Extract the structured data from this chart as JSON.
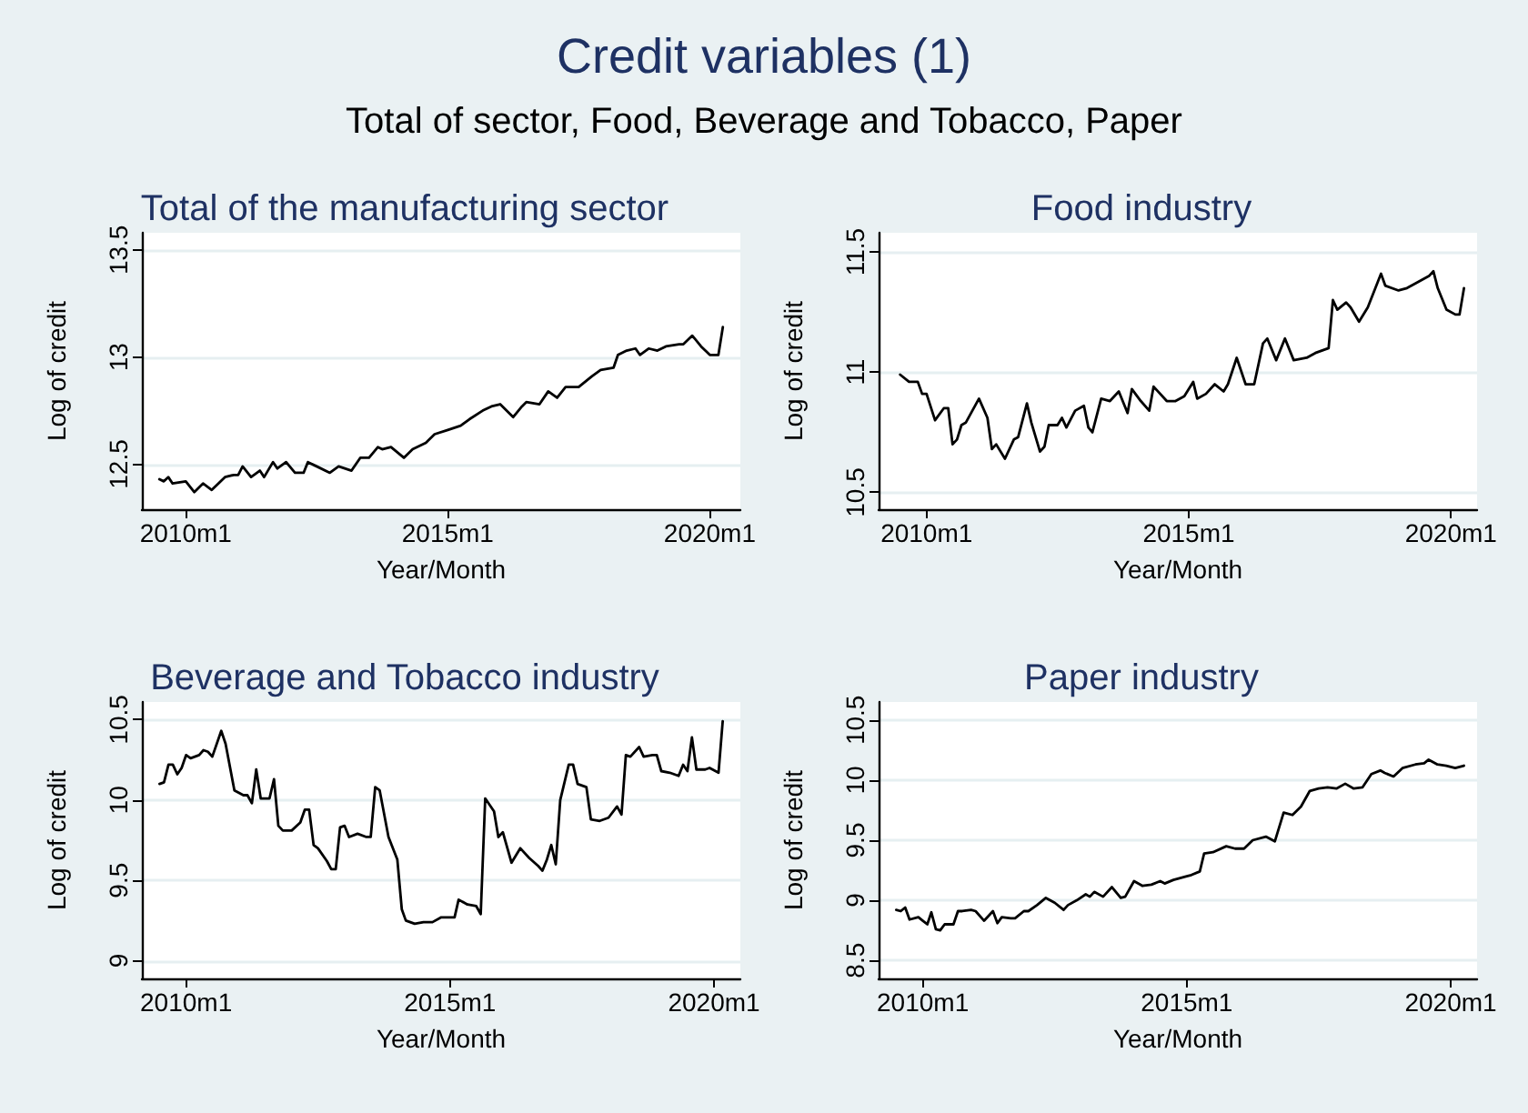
{
  "chart_data": [
    {
      "type": "other",
      "title": "Credit variables (1)",
      "subtitle": "Total of sector, Food, Beverage and Tobacco, Paper"
    },
    {
      "type": "line",
      "title": "Total of the manufacturing sector",
      "xlabel": "Year/Month",
      "ylabel": "Log of credit",
      "marker": "none",
      "line_style": "solid",
      "grid": "y",
      "xlim": [
        "2009-03",
        "2020-08"
      ],
      "xticks": [
        {
          "value": "2010-01",
          "label": "2010m1"
        },
        {
          "value": "2015-01",
          "label": "2015m1"
        },
        {
          "value": "2020-01",
          "label": "2020m1"
        }
      ],
      "ylim": [
        12.29,
        13.58
      ],
      "yticks": [
        12.5,
        13,
        13.5
      ],
      "x": [
        "2009-07",
        "2009-08",
        "2009-09",
        "2009-10",
        "2010-01",
        "2010-03",
        "2010-05",
        "2010-07",
        "2010-10",
        "2010-12",
        "2011-01",
        "2011-02",
        "2011-04",
        "2011-06",
        "2011-07",
        "2011-09",
        "2011-10",
        "2011-12",
        "2012-02",
        "2012-04",
        "2012-05",
        "2012-07",
        "2012-10",
        "2012-12",
        "2013-03",
        "2013-05",
        "2013-07",
        "2013-09",
        "2013-10",
        "2013-12",
        "2014-03",
        "2014-05",
        "2014-08",
        "2014-10",
        "2015-01",
        "2015-04",
        "2015-06",
        "2015-09",
        "2015-11",
        "2016-01",
        "2016-04",
        "2016-06",
        "2016-07",
        "2016-10",
        "2016-12",
        "2017-02",
        "2017-04",
        "2017-07",
        "2017-10",
        "2017-12",
        "2018-03",
        "2018-04",
        "2018-06",
        "2018-08",
        "2018-09",
        "2018-11",
        "2019-01",
        "2019-03",
        "2019-06",
        "2019-07",
        "2019-09",
        "2019-11",
        "2019-12",
        "2020-01",
        "2020-03",
        "2020-04"
      ],
      "series": [
        {
          "color": "#000000",
          "values": [
            12.43,
            12.42,
            12.44,
            12.41,
            12.42,
            12.37,
            12.41,
            12.38,
            12.44,
            12.45,
            12.45,
            12.49,
            12.44,
            12.47,
            12.44,
            12.51,
            12.48,
            12.51,
            12.46,
            12.46,
            12.51,
            12.49,
            12.46,
            12.49,
            12.47,
            12.53,
            12.53,
            12.58,
            12.57,
            12.58,
            12.53,
            12.57,
            12.6,
            12.64,
            12.66,
            12.68,
            12.71,
            12.75,
            12.77,
            12.78,
            12.72,
            12.77,
            12.79,
            12.78,
            12.84,
            12.81,
            12.86,
            12.86,
            12.91,
            12.94,
            12.95,
            13.01,
            13.03,
            13.04,
            13.01,
            13.04,
            13.03,
            13.05,
            13.06,
            13.06,
            13.1,
            13.05,
            13.03,
            13.01,
            13.01,
            13.14
          ]
        }
      ]
    },
    {
      "type": "line",
      "title": "Food industry",
      "xlabel": "Year/Month",
      "ylabel": "Log of credit",
      "marker": "none",
      "line_style": "solid",
      "grid": "y",
      "xlim": [
        "2009-02",
        "2020-07"
      ],
      "xticks": [
        {
          "value": "2010-01",
          "label": "2010m1"
        },
        {
          "value": "2015-01",
          "label": "2015m1"
        },
        {
          "value": "2020-01",
          "label": "2020m1"
        }
      ],
      "ylim": [
        10.43,
        11.58
      ],
      "yticks": [
        10.5,
        11,
        11.5
      ],
      "x": [
        "2009-07",
        "2009-09",
        "2009-11",
        "2009-12",
        "2010-01",
        "2010-03",
        "2010-05",
        "2010-06",
        "2010-07",
        "2010-08",
        "2010-09",
        "2010-10",
        "2011-01",
        "2011-03",
        "2011-04",
        "2011-05",
        "2011-07",
        "2011-09",
        "2011-10",
        "2011-12",
        "2012-01",
        "2012-03",
        "2012-04",
        "2012-05",
        "2012-07",
        "2012-08",
        "2012-09",
        "2012-11",
        "2013-01",
        "2013-02",
        "2013-03",
        "2013-05",
        "2013-07",
        "2013-08",
        "2013-09",
        "2013-11",
        "2013-12",
        "2014-02",
        "2014-04",
        "2014-05",
        "2014-08",
        "2014-10",
        "2014-12",
        "2015-02",
        "2015-03",
        "2015-05",
        "2015-07",
        "2015-09",
        "2015-10",
        "2015-12",
        "2016-02",
        "2016-04",
        "2016-06",
        "2016-07",
        "2016-09",
        "2016-11",
        "2017-01",
        "2017-04",
        "2017-06",
        "2017-09",
        "2017-10",
        "2017-11",
        "2018-01",
        "2018-02",
        "2018-04",
        "2018-06",
        "2018-09",
        "2018-10",
        "2019-01",
        "2019-03",
        "2019-05",
        "2019-08",
        "2019-09",
        "2019-10",
        "2019-12",
        "2020-02",
        "2020-03",
        "2020-04"
      ],
      "series": [
        {
          "color": "#000000",
          "values": [
            10.99,
            10.96,
            10.96,
            10.91,
            10.91,
            10.8,
            10.85,
            10.85,
            10.7,
            10.72,
            10.78,
            10.79,
            10.89,
            10.81,
            10.68,
            10.7,
            10.64,
            10.72,
            10.73,
            10.87,
            10.79,
            10.67,
            10.69,
            10.78,
            10.78,
            10.81,
            10.77,
            10.84,
            10.86,
            10.77,
            10.75,
            10.89,
            10.88,
            10.9,
            10.92,
            10.83,
            10.93,
            10.88,
            10.84,
            10.94,
            10.88,
            10.88,
            10.9,
            10.96,
            10.89,
            10.91,
            10.95,
            10.92,
            10.95,
            11.06,
            10.95,
            10.95,
            11.12,
            11.14,
            11.05,
            11.14,
            11.05,
            11.06,
            11.08,
            11.1,
            11.3,
            11.26,
            11.29,
            11.27,
            11.21,
            11.27,
            11.41,
            11.36,
            11.34,
            11.35,
            11.37,
            11.4,
            11.42,
            11.35,
            11.26,
            11.24,
            11.24,
            11.35
          ]
        }
      ]
    },
    {
      "type": "line",
      "title": "Beverage and Tobacco industry",
      "xlabel": "Year/Month",
      "ylabel": "Log of credit",
      "marker": "none",
      "line_style": "solid",
      "grid": "y",
      "xlim": [
        "2009-03",
        "2020-07"
      ],
      "xticks": [
        {
          "value": "2010-01",
          "label": "2010m1"
        },
        {
          "value": "2015-01",
          "label": "2015m1"
        },
        {
          "value": "2020-01",
          "label": "2020m1"
        }
      ],
      "ylim": [
        8.89,
        10.61
      ],
      "yticks": [
        9,
        9.5,
        10,
        10.5
      ],
      "x": [
        "2009-07",
        "2009-08",
        "2009-09",
        "2009-10",
        "2009-11",
        "2009-12",
        "2010-01",
        "2010-02",
        "2010-04",
        "2010-05",
        "2010-06",
        "2010-07",
        "2010-09",
        "2010-10",
        "2010-12",
        "2011-02",
        "2011-03",
        "2011-04",
        "2011-05",
        "2011-06",
        "2011-08",
        "2011-09",
        "2011-10",
        "2011-11",
        "2012-01",
        "2012-03",
        "2012-04",
        "2012-05",
        "2012-06",
        "2012-07",
        "2012-09",
        "2012-10",
        "2012-11",
        "2012-12",
        "2013-01",
        "2013-02",
        "2013-04",
        "2013-06",
        "2013-07",
        "2013-08",
        "2013-09",
        "2013-11",
        "2014-01",
        "2014-02",
        "2014-03",
        "2014-05",
        "2014-07",
        "2014-09",
        "2014-11",
        "2015-01",
        "2015-02",
        "2015-03",
        "2015-05",
        "2015-07",
        "2015-08",
        "2015-09",
        "2015-11",
        "2015-12",
        "2016-01",
        "2016-03",
        "2016-05",
        "2016-07",
        "2016-09",
        "2016-10",
        "2016-11",
        "2016-12",
        "2017-01",
        "2017-02",
        "2017-04",
        "2017-05",
        "2017-06",
        "2017-08",
        "2017-09",
        "2017-11",
        "2018-01",
        "2018-03",
        "2018-04",
        "2018-05",
        "2018-06",
        "2018-08",
        "2018-09",
        "2018-11",
        "2018-12",
        "2019-01",
        "2019-03",
        "2019-05",
        "2019-06",
        "2019-07",
        "2019-08",
        "2019-09",
        "2019-11",
        "2019-12",
        "2020-02",
        "2020-03"
      ],
      "series": [
        {
          "color": "#000000",
          "values": [
            10.1,
            10.11,
            10.22,
            10.22,
            10.16,
            10.2,
            10.28,
            10.26,
            10.28,
            10.31,
            10.3,
            10.27,
            10.43,
            10.35,
            10.06,
            10.03,
            10.03,
            9.98,
            10.19,
            10.01,
            10.01,
            10.13,
            9.84,
            9.81,
            9.81,
            9.86,
            9.94,
            9.94,
            9.72,
            9.7,
            9.62,
            9.57,
            9.57,
            9.83,
            9.84,
            9.77,
            9.79,
            9.77,
            9.77,
            10.08,
            10.06,
            9.77,
            9.63,
            9.32,
            9.25,
            9.23,
            9.24,
            9.24,
            9.27,
            9.27,
            9.27,
            9.38,
            9.35,
            9.34,
            9.29,
            10.01,
            9.93,
            9.77,
            9.8,
            9.61,
            9.7,
            9.64,
            9.59,
            9.56,
            9.63,
            9.72,
            9.6,
            10.0,
            10.22,
            10.22,
            10.1,
            10.08,
            9.88,
            9.87,
            9.89,
            9.96,
            9.91,
            10.28,
            10.27,
            10.33,
            10.27,
            10.28,
            10.28,
            10.18,
            10.17,
            10.15,
            10.22,
            10.18,
            10.39,
            10.19,
            10.19,
            10.2,
            10.17,
            10.49
          ]
        }
      ]
    },
    {
      "type": "line",
      "title": "Paper industry",
      "xlabel": "Year/Month",
      "ylabel": "Log of credit",
      "marker": "none",
      "line_style": "solid",
      "grid": "y",
      "xlim": [
        "2009-03",
        "2020-07"
      ],
      "xticks": [
        {
          "value": "2010-01",
          "label": "2010m1"
        },
        {
          "value": "2015-01",
          "label": "2015m1"
        },
        {
          "value": "2020-01",
          "label": "2020m1"
        }
      ],
      "ylim": [
        8.35,
        10.65
      ],
      "yticks": [
        8.5,
        9,
        9.5,
        10,
        10.5
      ],
      "x": [
        "2009-07",
        "2009-08",
        "2009-09",
        "2009-10",
        "2009-12",
        "2010-01",
        "2010-02",
        "2010-03",
        "2010-04",
        "2010-05",
        "2010-06",
        "2010-08",
        "2010-09",
        "2010-10",
        "2010-12",
        "2011-01",
        "2011-03",
        "2011-05",
        "2011-06",
        "2011-07",
        "2011-09",
        "2011-10",
        "2011-12",
        "2012-01",
        "2012-03",
        "2012-05",
        "2012-07",
        "2012-09",
        "2012-10",
        "2012-12",
        "2013-02",
        "2013-03",
        "2013-04",
        "2013-06",
        "2013-08",
        "2013-10",
        "2013-11",
        "2014-01",
        "2014-03",
        "2014-05",
        "2014-07",
        "2014-08",
        "2014-10",
        "2015-01",
        "2015-02",
        "2015-04",
        "2015-05",
        "2015-07",
        "2015-10",
        "2015-12",
        "2016-02",
        "2016-04",
        "2016-07",
        "2016-09",
        "2016-11",
        "2017-01",
        "2017-03",
        "2017-05",
        "2017-07",
        "2017-09",
        "2017-11",
        "2018-01",
        "2018-03",
        "2018-05",
        "2018-07",
        "2018-09",
        "2018-10",
        "2018-12",
        "2019-02",
        "2019-05",
        "2019-07",
        "2019-08",
        "2019-10",
        "2019-12",
        "2020-02",
        "2020-04"
      ],
      "series": [
        {
          "color": "#000000",
          "values": [
            8.92,
            8.91,
            8.94,
            8.84,
            8.86,
            8.83,
            8.8,
            8.9,
            8.76,
            8.75,
            8.8,
            8.8,
            8.91,
            8.91,
            8.92,
            8.91,
            8.83,
            8.91,
            8.81,
            8.86,
            8.85,
            8.85,
            8.91,
            8.91,
            8.96,
            9.02,
            8.98,
            8.92,
            8.96,
            9.0,
            9.05,
            9.03,
            9.07,
            9.03,
            9.11,
            9.02,
            9.03,
            9.16,
            9.12,
            9.13,
            9.16,
            9.14,
            9.17,
            9.2,
            9.21,
            9.24,
            9.39,
            9.4,
            9.45,
            9.43,
            9.43,
            9.5,
            9.53,
            9.49,
            9.73,
            9.71,
            9.78,
            9.91,
            9.93,
            9.94,
            9.93,
            9.97,
            9.93,
            9.94,
            10.05,
            10.08,
            10.06,
            10.03,
            10.1,
            10.13,
            10.14,
            10.17,
            10.13,
            10.12,
            10.1,
            10.12
          ]
        }
      ]
    }
  ]
}
